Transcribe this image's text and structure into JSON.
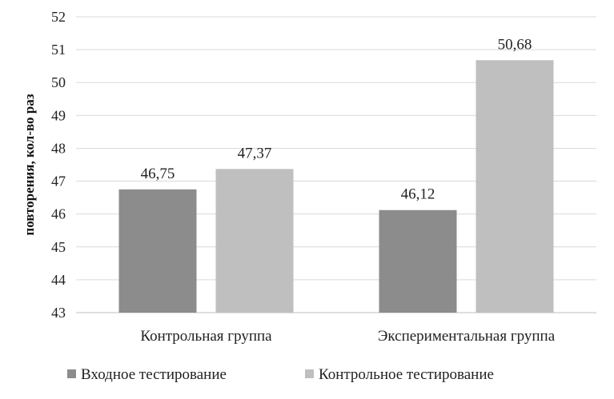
{
  "chart_data": {
    "type": "bar",
    "categories": [
      "Контрольная группа",
      "Экспериментальная группа"
    ],
    "series": [
      {
        "name": "Входное тестирование",
        "values": [
          46.75,
          46.12
        ],
        "labels": [
          "46,75",
          "46,12"
        ],
        "color": "#8c8c8c"
      },
      {
        "name": "Контрольное тестирование",
        "values": [
          47.37,
          50.68
        ],
        "labels": [
          "47,37",
          "50,68"
        ],
        "color": "#bfbfbf"
      }
    ],
    "ylabel": "повторения, кол-во раз",
    "ylim": [
      43,
      52
    ],
    "yticks": [
      "43",
      "44",
      "45",
      "46",
      "47",
      "48",
      "49",
      "50",
      "51",
      "52"
    ],
    "grid": true,
    "legend": "bottom"
  }
}
